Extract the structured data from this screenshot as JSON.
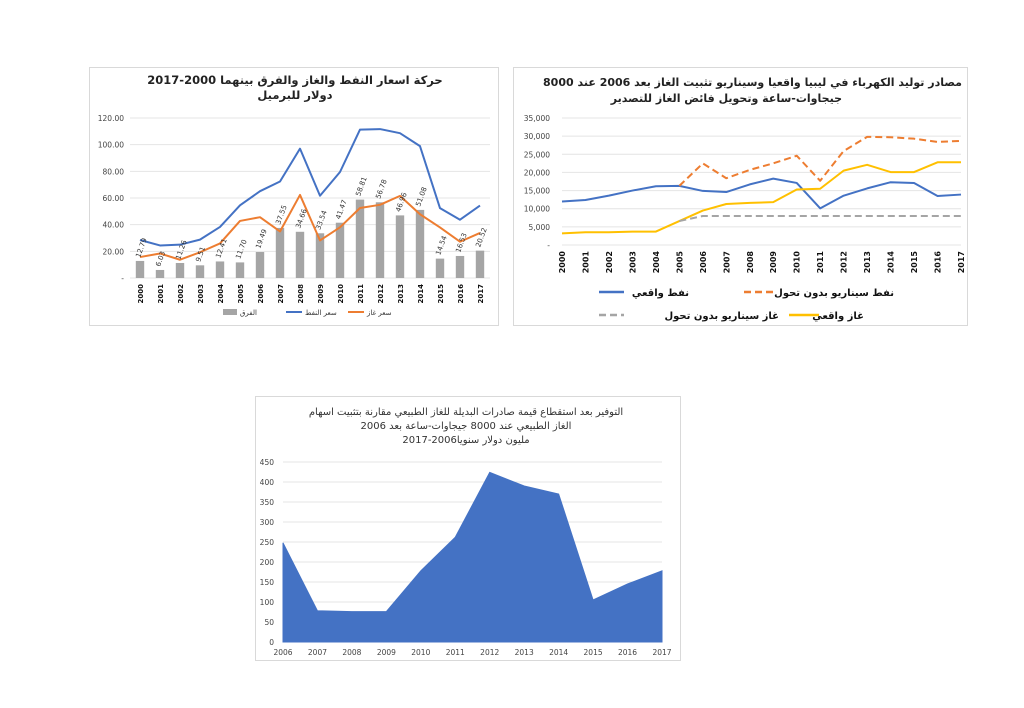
{
  "chart_data": [
    {
      "type": "bar+line",
      "title_line1": "حركة اسعار النفط والغاز والفرق بينهما 2000-2017",
      "title_line2": "دولار للبرميل",
      "categories": [
        "2000",
        "2001",
        "2002",
        "2003",
        "2004",
        "2005",
        "2006",
        "2007",
        "2008",
        "2009",
        "2010",
        "2011",
        "2012",
        "2013",
        "2014",
        "2015",
        "2016",
        "2017"
      ],
      "ylim": [
        0,
        120
      ],
      "yticks": [
        "-",
        "20.00",
        "40.00",
        "60.00",
        "80.00",
        "100.00",
        "120.00"
      ],
      "series": [
        {
          "name": "الفرق",
          "kind": "bar",
          "color": "#a5a5a5",
          "values": [
            12.79,
            6.03,
            11.26,
            9.51,
            12.41,
            11.7,
            19.49,
            37.55,
            34.66,
            33.54,
            41.47,
            58.81,
            56.78,
            46.96,
            51.08,
            14.54,
            16.53,
            20.52
          ],
          "labels": [
            "12.79",
            "6.03",
            "11.26",
            "9.51",
            "12.41",
            "11.70",
            "19.49",
            "37.55",
            "34.66",
            "33.54",
            "41.47",
            "58.81",
            "56.78",
            "46.96",
            "51.08",
            "14.54",
            "16.53",
            "20.52"
          ]
        },
        {
          "name": "سعر النفط",
          "kind": "line",
          "color": "#4472c4",
          "values": [
            28.5,
            24.4,
            25.0,
            28.8,
            38.3,
            54.5,
            65.1,
            72.4,
            97.0,
            61.7,
            79.5,
            111.3,
            111.7,
            108.6,
            98.9,
            52.4,
            43.7,
            54.3
          ]
        },
        {
          "name": "سعر غاز",
          "kind": "line",
          "color": "#ed7d31",
          "values": [
            15.7,
            18.4,
            13.7,
            19.3,
            25.9,
            42.8,
            45.6,
            34.9,
            62.3,
            28.2,
            38.0,
            52.5,
            54.9,
            61.6,
            47.8,
            37.9,
            27.2,
            33.8
          ]
        }
      ],
      "legend_position": "bottom"
    },
    {
      "type": "line",
      "title_line1": "مصادر توليد الكهرباء في ليبيا واقعيا وسيناريو تثبيت الغاز بعد 2006 عند 8000",
      "title_line2": "جيجاوات-ساعة وتحويل فائض الغاز للتصدير",
      "categories": [
        "2000",
        "2001",
        "2002",
        "2003",
        "2004",
        "2005",
        "2006",
        "2007",
        "2008",
        "2009",
        "2010",
        "2011",
        "2012",
        "2013",
        "2014",
        "2015",
        "2016",
        "2017"
      ],
      "ylim": [
        0,
        35000
      ],
      "yticks": [
        "-",
        "5,000",
        "10,000",
        "15,000",
        "20,000",
        "25,000",
        "30,000",
        "35,000"
      ],
      "series": [
        {
          "name": "نفط واقعي",
          "color": "#4472c4",
          "dash": "solid",
          "values": [
            12000,
            12400,
            13600,
            15000,
            16200,
            16300,
            14900,
            14600,
            16700,
            18300,
            17100,
            10100,
            13600,
            15600,
            17300,
            17100,
            13500,
            13900
          ]
        },
        {
          "name": "نفط سيناريو بدون تحول",
          "color": "#ed7d31",
          "dash": "dashed",
          "values": [
            null,
            null,
            null,
            null,
            null,
            16300,
            22500,
            18400,
            20700,
            22500,
            24600,
            17700,
            25900,
            29800,
            29700,
            29300,
            28400,
            28700
          ]
        },
        {
          "name": "غاز واقعي",
          "color": "#ffc000",
          "dash": "solid",
          "values": [
            3200,
            3500,
            3500,
            3700,
            3700,
            6600,
            9500,
            11300,
            11600,
            11800,
            15300,
            15500,
            20500,
            22100,
            20100,
            20100,
            22800,
            22800
          ]
        },
        {
          "name": "غاز سيناريو بدون تحول",
          "color": "#a5a5a5",
          "dash": "dashed",
          "values": [
            null,
            null,
            null,
            null,
            null,
            6600,
            8000,
            8000,
            8000,
            8000,
            8000,
            8000,
            8000,
            8000,
            8000,
            8000,
            8000,
            8000
          ]
        }
      ],
      "legend_position": "bottom"
    },
    {
      "type": "area",
      "title_line1": "التوفير بعد استقطاع قيمة صادرات البديلة للغاز الطبيعي مقارنة بتثبيت اسهام",
      "title_line2": "الغاز الطبيعي عند 8000 جيجاوات-ساعة بعد 2006",
      "title_line3": "مليون دولار سنويا2006-2017",
      "categories": [
        "2006",
        "2007",
        "2008",
        "2009",
        "2010",
        "2011",
        "2012",
        "2013",
        "2014",
        "2015",
        "2016",
        "2017"
      ],
      "values": [
        248,
        78,
        76,
        76,
        178,
        262,
        424,
        390,
        370,
        105,
        145,
        178
      ],
      "color": "#4472c4",
      "ylim": [
        0,
        450
      ],
      "yticks": [
        "0",
        "50",
        "100",
        "150",
        "200",
        "250",
        "300",
        "350",
        "400",
        "450"
      ]
    }
  ]
}
